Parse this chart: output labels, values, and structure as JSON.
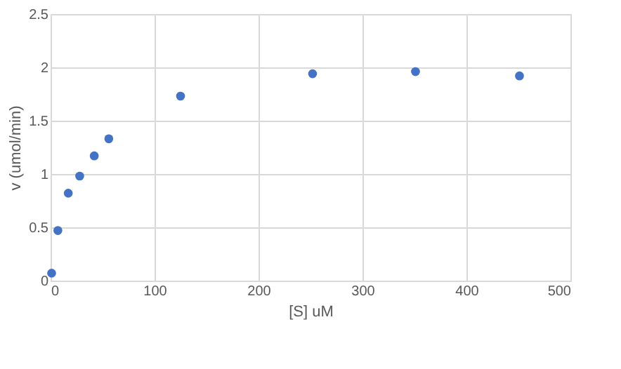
{
  "chart_data": {
    "type": "scatter",
    "xlabel": "[S] uM",
    "ylabel": "v (umol/min)",
    "x": [
      1,
      7,
      17,
      28,
      42,
      56,
      125,
      252,
      351,
      451
    ],
    "series": [
      {
        "color": "#4472c4",
        "values": [
          0.07,
          0.47,
          0.82,
          0.98,
          1.17,
          1.33,
          1.73,
          1.94,
          1.96,
          1.92
        ]
      }
    ],
    "xlim": [
      0,
      500
    ],
    "xticks": [
      0,
      100,
      200,
      300,
      400,
      500
    ],
    "ylim": [
      0,
      2.5
    ],
    "yticks": [
      0,
      0.5,
      1,
      1.5,
      2,
      2.5
    ],
    "grid": true,
    "marker": "circle"
  }
}
